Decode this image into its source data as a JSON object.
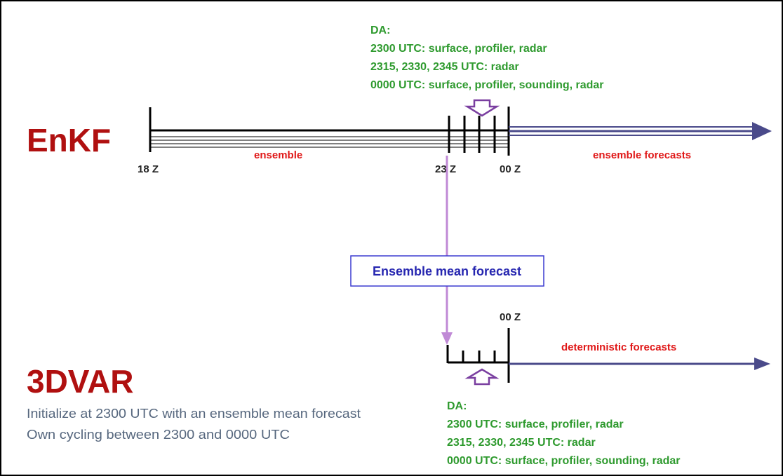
{
  "enkf": {
    "label": "EnKF",
    "da": {
      "header": "DA:",
      "lines": [
        "2300 UTC: surface, profiler, radar",
        "2315, 2330, 2345 UTC: radar",
        "0000 UTC: surface, profiler, sounding, radar"
      ]
    },
    "ticks": [
      "18 Z",
      "23 Z",
      "00 Z"
    ],
    "segment": "ensemble",
    "forecast": "ensemble forecasts"
  },
  "link": {
    "label": "Ensemble mean forecast"
  },
  "var3d": {
    "label": "3DVAR",
    "tick": "00 Z",
    "forecast": "deterministic forecasts",
    "notes": [
      "Initialize at 2300 UTC with an ensemble mean forecast",
      "Own cycling between 2300 and 0000 UTC"
    ],
    "da": {
      "header": "DA:",
      "lines": [
        "2300 UTC: surface, profiler, radar",
        "2315, 2330, 2345 UTC: radar",
        "0000 UTC: surface, profiler, sounding, radar"
      ]
    }
  }
}
